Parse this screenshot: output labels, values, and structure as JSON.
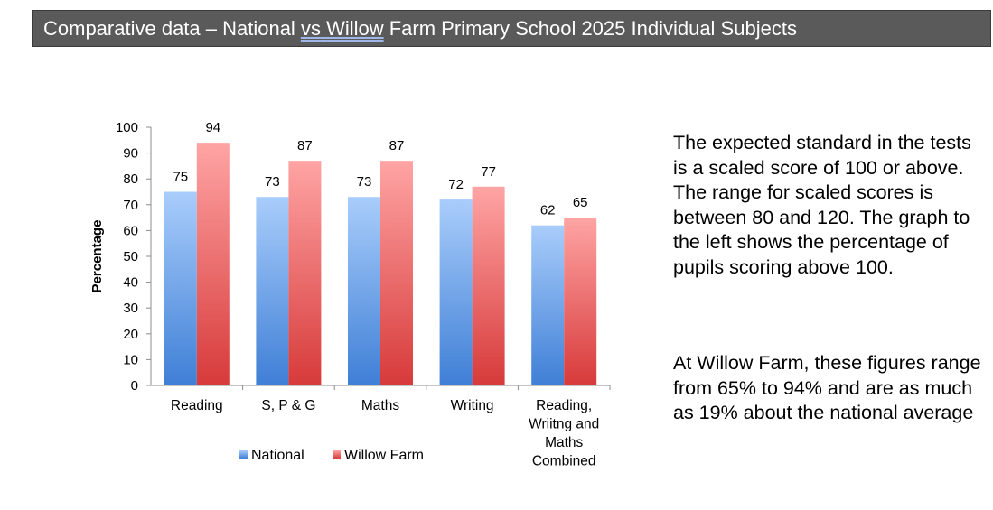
{
  "title": {
    "part1": "Comparative data – National ",
    "part2": "vs",
    "part3": "  ",
    "part4": "Willow",
    "part5": " Farm Primary School 2025 Individual Subjects"
  },
  "text": {
    "paragraph1": "The expected standard in the tests is a scaled score of 100 or above. The range for scaled scores is between 80 and 120. The graph to the left shows the percentage of pupils scoring above 100.",
    "paragraph2": "At Willow Farm, these figures range from 65% to 94% and are as much as 19% about the national average"
  },
  "colors": {
    "national_top": "#a9cdfb",
    "national_bottom": "#3f7fd6",
    "willow_top": "#ffa4a4",
    "willow_bottom": "#d73a3a"
  },
  "chart_data": {
    "type": "bar",
    "title": "",
    "xlabel": "",
    "ylabel": "Percentage",
    "ylim": [
      0,
      100
    ],
    "yticks": [
      0,
      10,
      20,
      30,
      40,
      50,
      60,
      70,
      80,
      90,
      100
    ],
    "grid": false,
    "legend": "bottom",
    "categories": [
      [
        "Reading"
      ],
      [
        "S, P & G"
      ],
      [
        "Maths"
      ],
      [
        "Writing"
      ],
      [
        "Reading,",
        "Wriitng and",
        "Maths",
        "Combined"
      ]
    ],
    "series": [
      {
        "name": "National",
        "values": [
          75,
          73,
          73,
          72,
          62
        ]
      },
      {
        "name": "Willow Farm",
        "values": [
          94,
          87,
          87,
          77,
          65
        ]
      }
    ]
  }
}
